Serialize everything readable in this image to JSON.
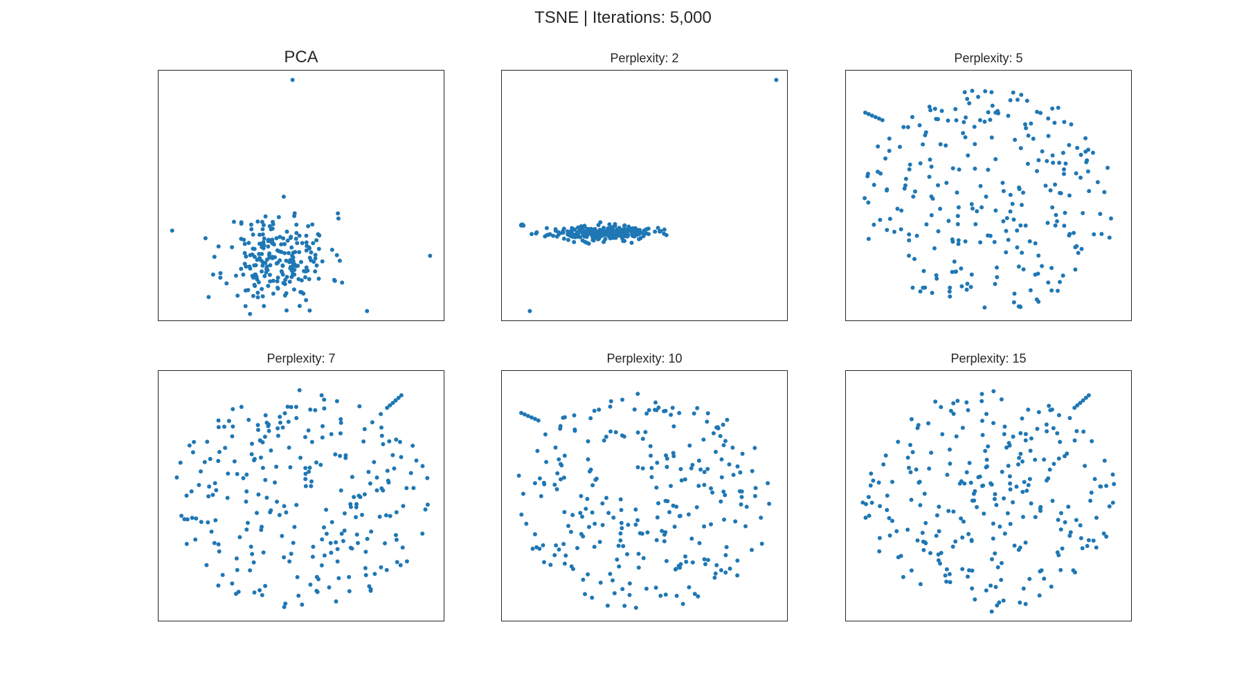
{
  "figure": {
    "suptitle": "TSNE | Iterations: 5,000",
    "marker_color": "#1f77b4"
  },
  "chart_data": [
    {
      "type": "scatter",
      "title": "PCA",
      "xlim": [
        0,
        100
      ],
      "ylim": [
        0,
        100
      ],
      "grid": false,
      "seed": 11,
      "mode": "pca"
    },
    {
      "type": "scatter",
      "title": "Perplexity: 2",
      "xlim": [
        0,
        100
      ],
      "ylim": [
        0,
        100
      ],
      "grid": false,
      "seed": 23,
      "mode": "band"
    },
    {
      "type": "scatter",
      "title": "Perplexity: 5",
      "xlim": [
        0,
        100
      ],
      "ylim": [
        0,
        100
      ],
      "grid": false,
      "seed": 37,
      "mode": "disk",
      "tail": "top-left"
    },
    {
      "type": "scatter",
      "title": "Perplexity: 7",
      "xlim": [
        0,
        100
      ],
      "ylim": [
        0,
        100
      ],
      "grid": false,
      "seed": 41,
      "mode": "disk",
      "tail": "top-right"
    },
    {
      "type": "scatter",
      "title": "Perplexity: 10",
      "xlim": [
        0,
        100
      ],
      "ylim": [
        0,
        100
      ],
      "grid": false,
      "seed": 53,
      "mode": "disk",
      "tail": "top-left"
    },
    {
      "type": "scatter",
      "title": "Perplexity: 15",
      "xlim": [
        0,
        100
      ],
      "ylim": [
        0,
        100
      ],
      "grid": false,
      "seed": 67,
      "mode": "disk",
      "tail": "top-right"
    }
  ]
}
